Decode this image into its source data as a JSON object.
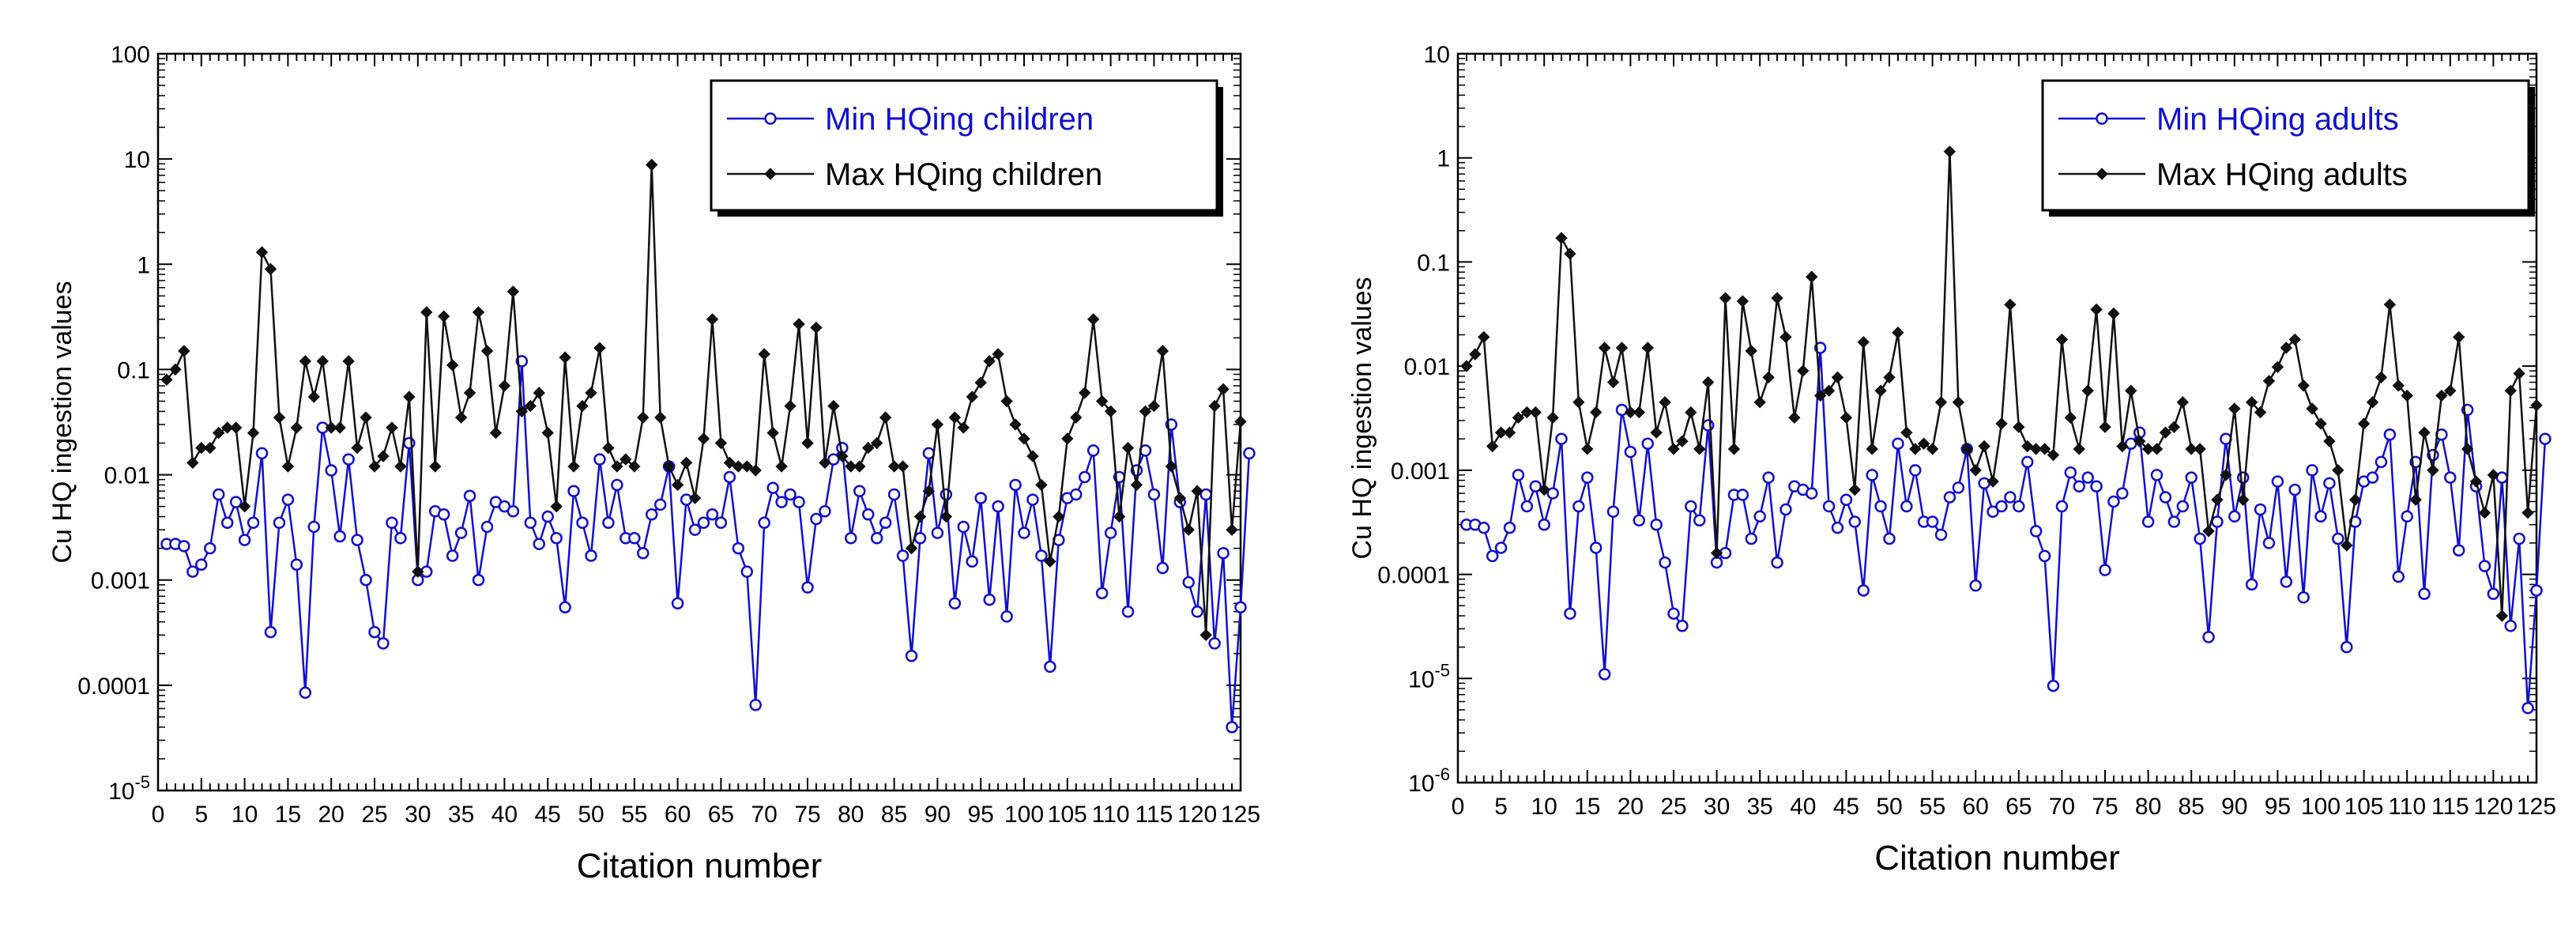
{
  "chart_data": [
    {
      "type": "line",
      "scale_y": "log",
      "ylabel": "Cu HQ ingestion values",
      "xlabel": "Citation number",
      "xlim": [
        0,
        125
      ],
      "ylim": [
        1e-05,
        100
      ],
      "x_ticks": [
        0,
        5,
        10,
        15,
        20,
        25,
        30,
        35,
        40,
        45,
        50,
        55,
        60,
        65,
        70,
        75,
        80,
        85,
        90,
        95,
        100,
        105,
        110,
        115,
        120,
        125
      ],
      "y_ticks": [
        {
          "v": 100,
          "label": "100"
        },
        {
          "v": 10,
          "label": "10"
        },
        {
          "v": 1,
          "label": "1"
        },
        {
          "v": 0.1,
          "label": "0.1"
        },
        {
          "v": 0.01,
          "label": "0.01"
        },
        {
          "v": 0.001,
          "label": "0.001"
        },
        {
          "v": 0.0001,
          "label": "0.0001"
        },
        {
          "v": 1e-05,
          "label": "10",
          "sup": "-5"
        }
      ],
      "legend_position": "top-right",
      "series": [
        {
          "name": "Min HQing children",
          "color": "#1010d0",
          "marker": "circle",
          "values": [
            0.0022,
            0.0022,
            0.0021,
            0.0012,
            0.0014,
            0.002,
            0.0065,
            0.0035,
            0.0055,
            0.0024,
            0.0035,
            0.016,
            0.00032,
            0.0035,
            0.0058,
            0.0014,
            8.5e-05,
            0.0032,
            0.028,
            0.011,
            0.0026,
            0.014,
            0.0024,
            0.001,
            0.00032,
            0.00025,
            0.0035,
            0.0025,
            0.02,
            0.001,
            0.0012,
            0.0045,
            0.0042,
            0.0017,
            0.0028,
            0.0063,
            0.001,
            0.0032,
            0.0055,
            0.005,
            0.0045,
            0.12,
            0.0035,
            0.0022,
            0.004,
            0.0025,
            0.00055,
            0.007,
            0.0035,
            0.0017,
            0.014,
            0.0035,
            0.008,
            0.0025,
            0.0025,
            0.0018,
            0.0042,
            0.0052,
            0.012,
            0.0006,
            0.0058,
            0.003,
            0.0035,
            0.0042,
            0.0035,
            0.0095,
            0.002,
            0.0012,
            6.5e-05,
            0.0035,
            0.0075,
            0.0055,
            0.0065,
            0.0055,
            0.00085,
            0.0038,
            0.0045,
            0.014,
            0.018,
            0.0025,
            0.007,
            0.0042,
            0.0025,
            0.0035,
            0.0065,
            0.0017,
            0.00019,
            0.0025,
            0.016,
            0.0028,
            0.0065,
            0.0006,
            0.0032,
            0.0015,
            0.006,
            0.00065,
            0.005,
            0.00045,
            0.008,
            0.0028,
            0.0058,
            0.0017,
            0.00015,
            0.0024,
            0.006,
            0.0065,
            0.0095,
            0.017,
            0.00075,
            0.0028,
            0.0095,
            0.0005,
            0.011,
            0.017,
            0.0065,
            0.0013,
            0.03,
            0.0055,
            0.00095,
            0.0005,
            0.0065,
            0.00025,
            0.0018,
            4e-05,
            0.00055,
            0.016
          ]
        },
        {
          "name": "Max HQing children",
          "color": "#111111",
          "marker": "diamond",
          "values": [
            0.08,
            0.1,
            0.15,
            0.013,
            0.018,
            0.018,
            0.025,
            0.028,
            0.028,
            0.005,
            0.025,
            1.3,
            0.9,
            0.035,
            0.012,
            0.028,
            0.12,
            0.055,
            0.12,
            0.028,
            0.028,
            0.12,
            0.018,
            0.035,
            0.012,
            0.015,
            0.028,
            0.012,
            0.055,
            0.0012,
            0.35,
            0.012,
            0.32,
            0.11,
            0.035,
            0.06,
            0.35,
            0.15,
            0.025,
            0.07,
            0.55,
            0.04,
            0.045,
            0.06,
            0.025,
            0.005,
            0.13,
            0.012,
            0.045,
            0.06,
            0.16,
            0.018,
            0.012,
            0.014,
            0.012,
            0.035,
            8.8,
            0.035,
            0.012,
            0.008,
            0.013,
            0.006,
            0.022,
            0.3,
            0.02,
            0.013,
            0.012,
            0.012,
            0.011,
            0.14,
            0.025,
            0.012,
            0.045,
            0.27,
            0.02,
            0.25,
            0.013,
            0.045,
            0.015,
            0.012,
            0.012,
            0.018,
            0.02,
            0.035,
            0.012,
            0.012,
            0.002,
            0.004,
            0.007,
            0.03,
            0.004,
            0.035,
            0.028,
            0.055,
            0.075,
            0.12,
            0.14,
            0.05,
            0.03,
            0.022,
            0.015,
            0.008,
            0.0015,
            0.004,
            0.022,
            0.035,
            0.06,
            0.3,
            0.05,
            0.04,
            0.004,
            0.018,
            0.008,
            0.04,
            0.045,
            0.15,
            0.012,
            0.006,
            0.003,
            0.007,
            0.0003,
            0.045,
            0.065,
            0.003,
            0.032
          ]
        }
      ]
    },
    {
      "type": "line",
      "scale_y": "log",
      "ylabel": "Cu HQ ingestion values",
      "xlabel": "Citation number",
      "xlim": [
        0,
        125
      ],
      "ylim": [
        1e-06,
        10
      ],
      "x_ticks": [
        0,
        5,
        10,
        15,
        20,
        25,
        30,
        35,
        40,
        45,
        50,
        55,
        60,
        65,
        70,
        75,
        80,
        85,
        90,
        95,
        100,
        105,
        110,
        115,
        120,
        125
      ],
      "y_ticks": [
        {
          "v": 10,
          "label": "10"
        },
        {
          "v": 1,
          "label": "1"
        },
        {
          "v": 0.1,
          "label": "0.1"
        },
        {
          "v": 0.01,
          "label": "0.01"
        },
        {
          "v": 0.001,
          "label": "0.001"
        },
        {
          "v": 0.0001,
          "label": "0.0001"
        },
        {
          "v": 1e-05,
          "label": "10",
          "sup": "-5"
        },
        {
          "v": 1e-06,
          "label": "10",
          "sup": "-6"
        }
      ],
      "legend_position": "top-right",
      "series": [
        {
          "name": "Min HQing adults",
          "color": "#1010d0",
          "marker": "circle",
          "values": [
            0.0003,
            0.0003,
            0.00028,
            0.00015,
            0.00018,
            0.00028,
            0.0009,
            0.00045,
            0.0007,
            0.0003,
            0.0006,
            0.002,
            4.2e-05,
            0.00045,
            0.00085,
            0.00018,
            1.1e-05,
            0.0004,
            0.0038,
            0.0015,
            0.00033,
            0.0018,
            0.0003,
            0.00013,
            4.2e-05,
            3.2e-05,
            0.00045,
            0.00033,
            0.0027,
            0.00013,
            0.00016,
            0.00058,
            0.00058,
            0.00022,
            0.00036,
            0.00085,
            0.00013,
            0.00042,
            0.0007,
            0.00065,
            0.0006,
            0.015,
            0.00045,
            0.00028,
            0.00052,
            0.00032,
            7e-05,
            0.0009,
            0.00045,
            0.00022,
            0.0018,
            0.00045,
            0.001,
            0.00032,
            0.00032,
            0.00024,
            0.00055,
            0.00068,
            0.0016,
            7.8e-05,
            0.00075,
            0.0004,
            0.00045,
            0.00055,
            0.00045,
            0.0012,
            0.00026,
            0.00015,
            8.5e-06,
            0.00045,
            0.00095,
            0.0007,
            0.00085,
            0.0007,
            0.00011,
            0.0005,
            0.0006,
            0.0018,
            0.0023,
            0.00032,
            0.0009,
            0.00055,
            0.00032,
            0.00045,
            0.00085,
            0.00022,
            2.5e-05,
            0.00032,
            0.002,
            0.00036,
            0.00085,
            8e-05,
            0.00042,
            0.0002,
            0.00078,
            8.5e-05,
            0.00065,
            6e-05,
            0.001,
            0.00036,
            0.00075,
            0.00022,
            2e-05,
            0.00032,
            0.00078,
            0.00085,
            0.0012,
            0.0022,
            9.5e-05,
            0.00036,
            0.0012,
            6.5e-05,
            0.0014,
            0.0022,
            0.00085,
            0.00017,
            0.0038,
            0.0007,
            0.00012,
            6.5e-05,
            0.00085,
            3.2e-05,
            0.00022,
            5.2e-06,
            7e-05,
            0.002
          ]
        },
        {
          "name": "Max HQing adults",
          "color": "#111111",
          "marker": "diamond",
          "values": [
            0.01,
            0.013,
            0.019,
            0.0017,
            0.0023,
            0.0023,
            0.0032,
            0.0036,
            0.0036,
            0.00065,
            0.0032,
            0.17,
            0.12,
            0.0045,
            0.0016,
            0.0036,
            0.015,
            0.007,
            0.015,
            0.0036,
            0.0036,
            0.015,
            0.0023,
            0.0045,
            0.0016,
            0.0019,
            0.0036,
            0.0016,
            0.007,
            0.00016,
            0.045,
            0.0016,
            0.042,
            0.014,
            0.0045,
            0.0078,
            0.045,
            0.019,
            0.0032,
            0.009,
            0.072,
            0.0052,
            0.0058,
            0.0078,
            0.0032,
            0.00065,
            0.017,
            0.0016,
            0.0058,
            0.0078,
            0.021,
            0.0023,
            0.0016,
            0.0018,
            0.0016,
            0.0045,
            1.15,
            0.0045,
            0.0016,
            0.001,
            0.0017,
            0.00078,
            0.0028,
            0.039,
            0.0026,
            0.0017,
            0.0016,
            0.0016,
            0.0014,
            0.018,
            0.0032,
            0.0016,
            0.0058,
            0.035,
            0.0026,
            0.032,
            0.0017,
            0.0058,
            0.0019,
            0.0016,
            0.0016,
            0.0023,
            0.0026,
            0.0045,
            0.0016,
            0.0016,
            0.00026,
            0.00052,
            0.0009,
            0.0039,
            0.00052,
            0.0045,
            0.0036,
            0.0072,
            0.0098,
            0.015,
            0.018,
            0.0065,
            0.0039,
            0.0028,
            0.0019,
            0.001,
            0.00019,
            0.00052,
            0.0028,
            0.0045,
            0.0078,
            0.039,
            0.0065,
            0.0052,
            0.00052,
            0.0023,
            0.001,
            0.0052,
            0.0058,
            0.019,
            0.0016,
            0.00078,
            0.00039,
            0.0009,
            4e-05,
            0.0058,
            0.0085,
            0.00039,
            0.0042
          ]
        }
      ]
    }
  ]
}
